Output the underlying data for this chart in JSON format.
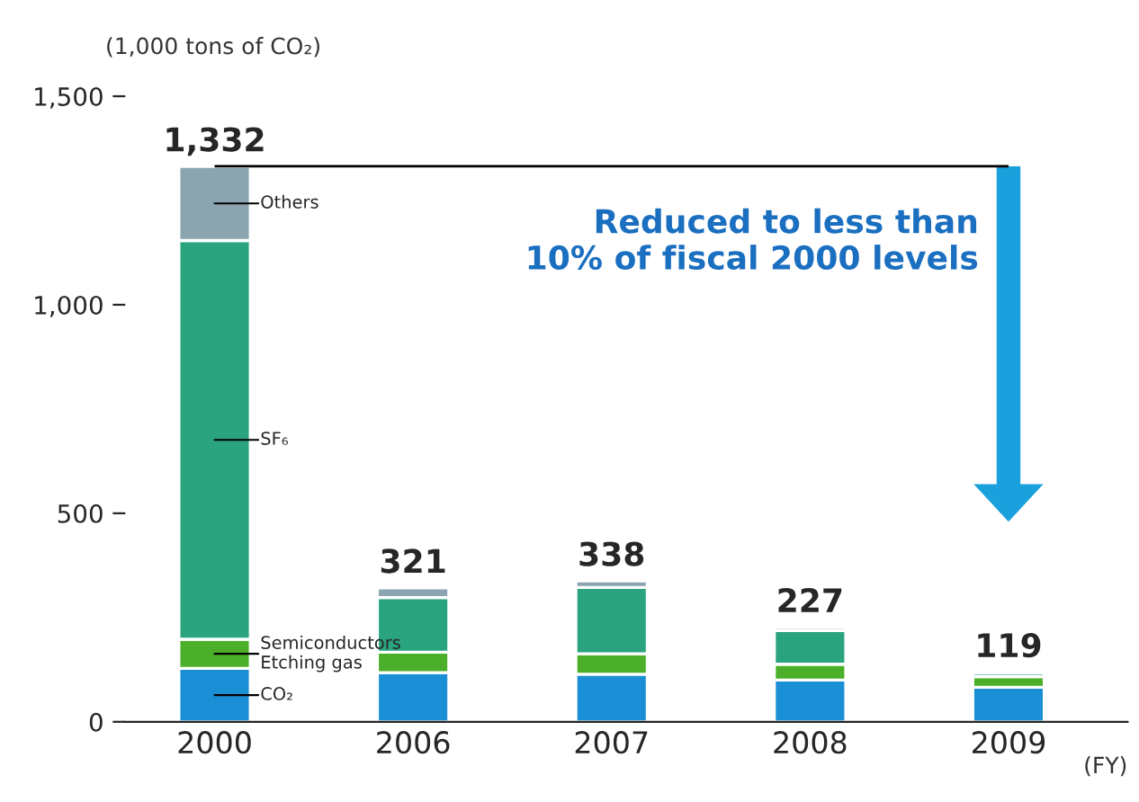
{
  "chart_data": {
    "type": "bar",
    "stacked": true,
    "ylabel": "(1,000 tons of CO₂)",
    "xlabel": "(FY)",
    "categories": [
      "2000",
      "2006",
      "2007",
      "2008",
      "2009"
    ],
    "series": [
      {
        "name": "CO₂",
        "color": "#1a8fd6",
        "values": [
          128,
          118,
          114,
          100,
          83
        ]
      },
      {
        "name": "Semiconductors\nEtching gas",
        "color": "#4caf2a",
        "values": [
          70,
          49,
          49,
          38,
          25
        ]
      },
      {
        "name": "SF₆",
        "color": "#2aa37f",
        "values": [
          956,
          131,
          159,
          81,
          9
        ]
      },
      {
        "name": "Others",
        "color": "#8aa5b0",
        "values": [
          178,
          23,
          16,
          8,
          2
        ]
      }
    ],
    "totals": [
      "1,332",
      "321",
      "338",
      "227",
      "119"
    ],
    "ylim": [
      0,
      1500
    ],
    "yticks": [
      0,
      {
        "value": 500,
        "label": "500"
      },
      {
        "value": 1000,
        "label": "1,000"
      },
      {
        "value": 1500,
        "label": "1,500"
      }
    ],
    "ref_lines": [
      {
        "axis": "y",
        "value": 1332,
        "color": "#000000"
      }
    ],
    "annotations": [
      "Reduced to less than\n10% of fiscal 2000 levels"
    ],
    "grid": false,
    "legend": false
  }
}
